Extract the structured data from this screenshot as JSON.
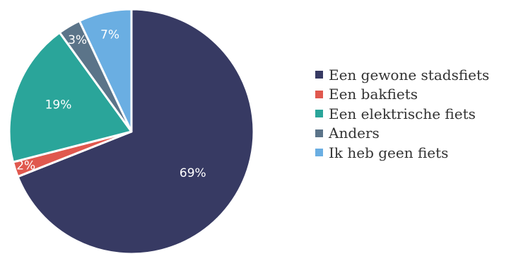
{
  "chart_data": {
    "type": "pie",
    "title": "",
    "categories": [
      "Een gewone stadsfiets",
      "Een bakfiets",
      "Een elektrische fiets",
      "Anders",
      "Ik heb geen fiets"
    ],
    "values": [
      69,
      2,
      19,
      3,
      7
    ],
    "labels": [
      "69%",
      "2%",
      "19%",
      "3%",
      "7%"
    ],
    "colors": [
      "#373A63",
      "#E0584E",
      "#2AA59A",
      "#5B7489",
      "#6AAEE2"
    ],
    "start_angle_deg": 0,
    "direction": "clockwise",
    "legend_position": "right"
  }
}
